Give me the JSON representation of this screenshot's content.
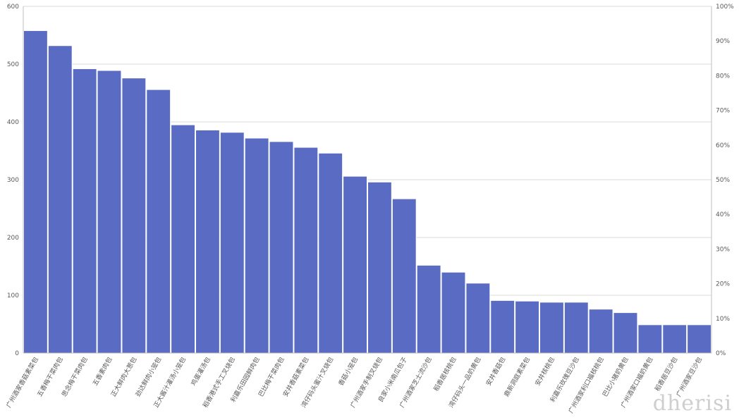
{
  "chart_data": {
    "type": "bar",
    "secondary_axis_ticks": [
      "0%",
      "10%",
      "20%",
      "30%",
      "40%",
      "50%",
      "60%",
      "70%",
      "80%",
      "90%",
      "100%"
    ],
    "categories": [
      "广州酒家香菇素菜包",
      "五香梅干菜肉包",
      "思念梅干菜肉包",
      "五香素肉包",
      "正大鲜肉大葱包",
      "劲达鲜肉小笼包",
      "正大酱汁灌汤小笼包",
      "鸡蛋灌汤包",
      "稻香港式手工叉烧包",
      "利嘉乐田园鲜肉包",
      "巴比梅干菜肉包",
      "安井香菇素菜包",
      "湾仔码头蜜汁叉烧包",
      "香菇小笼包",
      "广州酒家手制叉烧包",
      "良家小米南瓜包子",
      "广州酒家芝士流沙包",
      "稻香居核桃包",
      "湾仔码头一品奶黄包",
      "安井香菇包",
      "鼎新洞庭素菜包",
      "安井核桃包",
      "利嘉乐玫瑰豆沙包",
      "广州酒家利口福核桃包",
      "巴比小猪奶黄包",
      "广州酒家口福奶黄包",
      "稻香居豆沙包",
      "广州酒家豆沙包"
    ],
    "values": [
      558,
      532,
      492,
      489,
      476,
      456,
      395,
      386,
      382,
      372,
      366,
      356,
      346,
      306,
      296,
      267,
      152,
      140,
      121,
      91,
      90,
      88,
      88,
      76,
      70,
      49,
      49,
      49
    ],
    "ylim": [
      0,
      600
    ],
    "yticks": [
      0,
      100,
      200,
      300,
      400,
      500,
      600
    ],
    "bar_color": "#5a6bc3",
    "grid": true,
    "legend": "none"
  },
  "watermark": "ⅾherisi"
}
